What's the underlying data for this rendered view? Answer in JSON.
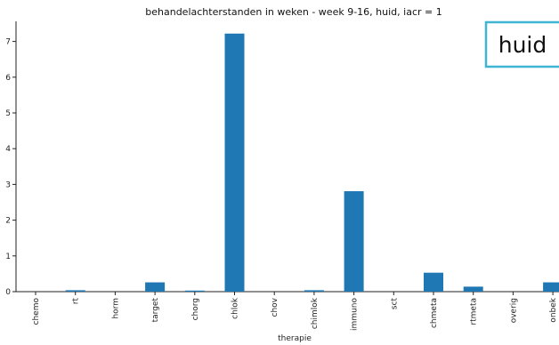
{
  "chart_data": {
    "type": "bar",
    "title": "behandelachterstanden in weken - week 9-16, huid, iacr = 1",
    "xlabel": "therapie",
    "ylabel": "",
    "categories": [
      "chemo",
      "rt",
      "horm",
      "target",
      "chorg",
      "chlok",
      "chov",
      "chimlok",
      "immuno",
      "sct",
      "chmeta",
      "rtmeta",
      "overig",
      "onbek"
    ],
    "values": [
      0,
      0.04,
      0,
      0.26,
      0.03,
      7.22,
      0,
      0.04,
      2.81,
      0,
      0.53,
      0.14,
      0,
      0.26
    ],
    "ylim": [
      0,
      7.5
    ],
    "yticks": [
      0,
      1,
      2,
      3,
      4,
      5,
      6,
      7
    ],
    "bar_color": "#1f77b4",
    "grid": false,
    "badge": {
      "text": "huid",
      "border_color": "#3fb5d3"
    }
  }
}
